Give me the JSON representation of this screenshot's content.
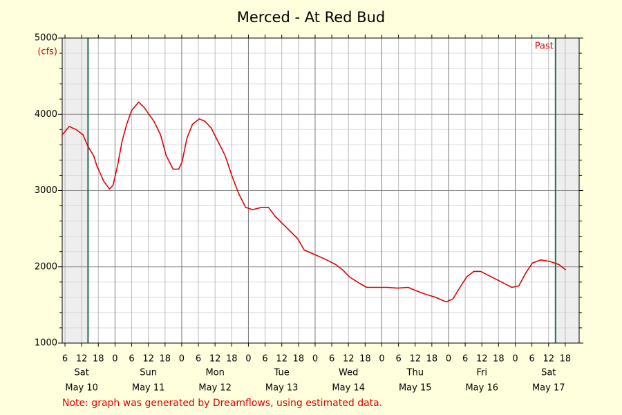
{
  "chart_data": {
    "type": "line",
    "title": "Merced - At Red Bud",
    "y_unit": "(cfs)",
    "period_label": "Past",
    "note": "Note: graph was generated by Dreamflows, using estimated data.",
    "color": "#e00000",
    "grid": true,
    "ylim": [
      1000,
      5000
    ],
    "yticks": [
      1000,
      2000,
      3000,
      4000,
      5000
    ],
    "yminor": [
      1200,
      1400,
      1600,
      1800,
      2200,
      2400,
      2600,
      2800,
      3200,
      3400,
      3600,
      3800,
      4200,
      4400,
      4600,
      4800
    ],
    "xlim": [
      5,
      191
    ],
    "xticks": [
      6,
      12,
      18,
      {
        "value": 24,
        "label": "0"
      },
      {
        "value": 30,
        "label": "6"
      },
      {
        "value": 36,
        "label": "12"
      },
      {
        "value": 42,
        "label": "18"
      },
      {
        "value": 48,
        "label": "0"
      },
      {
        "value": 54,
        "label": "6"
      },
      {
        "value": 60,
        "label": "12"
      },
      {
        "value": 66,
        "label": "18"
      },
      {
        "value": 72,
        "label": "0"
      },
      {
        "value": 78,
        "label": "6"
      },
      {
        "value": 84,
        "label": "12"
      },
      {
        "value": 90,
        "label": "18"
      },
      {
        "value": 96,
        "label": "0"
      },
      {
        "value": 102,
        "label": "6"
      },
      {
        "value": 108,
        "label": "12"
      },
      {
        "value": 114,
        "label": "18"
      },
      {
        "value": 120,
        "label": "0"
      },
      {
        "value": 126,
        "label": "6"
      },
      {
        "value": 132,
        "label": "12"
      },
      {
        "value": 138,
        "label": "18"
      },
      {
        "value": 144,
        "label": "0"
      },
      {
        "value": 150,
        "label": "6"
      },
      {
        "value": 156,
        "label": "12"
      },
      {
        "value": 162,
        "label": "18"
      },
      {
        "value": 168,
        "label": "0"
      },
      {
        "value": 174,
        "label": "6"
      },
      {
        "value": 180,
        "label": "12"
      },
      {
        "value": 186,
        "label": "18"
      }
    ],
    "day_labels": [
      {
        "value": 12,
        "weekday": "Sat",
        "date": "May 10"
      },
      {
        "value": 36,
        "weekday": "Sun",
        "date": "May 11"
      },
      {
        "value": 60,
        "weekday": "Mon",
        "date": "May 12"
      },
      {
        "value": 84,
        "weekday": "Tue",
        "date": "May 13"
      },
      {
        "value": 108,
        "weekday": "Wed",
        "date": "May 14"
      },
      {
        "value": 132,
        "weekday": "Thu",
        "date": "May 15"
      },
      {
        "value": 156,
        "weekday": "Fri",
        "date": "May 16"
      },
      {
        "value": 180,
        "weekday": "Sat",
        "date": "May 17"
      }
    ],
    "boundaries": [
      14.3,
      182.5
    ],
    "x": [
      5,
      7.5,
      10,
      12.5,
      14.3,
      16.3,
      17.5,
      20,
      22,
      23.3,
      25,
      26.5,
      28.2,
      30,
      32.5,
      34.5,
      36.2,
      38,
      40.4,
      42.4,
      44.9,
      46.9,
      48.1,
      49.9,
      51.9,
      54.3,
      56.3,
      58.6,
      61.1,
      63.6,
      66.1,
      68.5,
      71,
      73.5,
      76.7,
      79.2,
      81.7,
      84.7,
      87.2,
      89.7,
      92.1,
      95.9,
      99.6,
      103.4,
      105.9,
      108.3,
      112.1,
      114.6,
      118.3,
      122,
      125.7,
      129.5,
      132,
      135.7,
      139.4,
      143.1,
      145.6,
      148.1,
      150.6,
      153.1,
      155.6,
      159.3,
      163.1,
      166.8,
      169.3,
      171.8,
      174.2,
      177.2,
      180.5,
      183.7,
      186.2
    ],
    "values": [
      3730,
      3840,
      3800,
      3730,
      3575,
      3460,
      3320,
      3120,
      3020,
      3070,
      3340,
      3640,
      3870,
      4050,
      4160,
      4090,
      4000,
      3910,
      3730,
      3460,
      3280,
      3280,
      3370,
      3690,
      3870,
      3940,
      3910,
      3820,
      3640,
      3460,
      3190,
      2960,
      2780,
      2750,
      2780,
      2780,
      2660,
      2550,
      2460,
      2370,
      2220,
      2160,
      2100,
      2030,
      1960,
      1870,
      1780,
      1730,
      1730,
      1730,
      1720,
      1730,
      1690,
      1640,
      1600,
      1540,
      1580,
      1730,
      1870,
      1940,
      1940,
      1870,
      1800,
      1730,
      1750,
      1920,
      2050,
      2090,
      2070,
      2030,
      1960
    ]
  }
}
